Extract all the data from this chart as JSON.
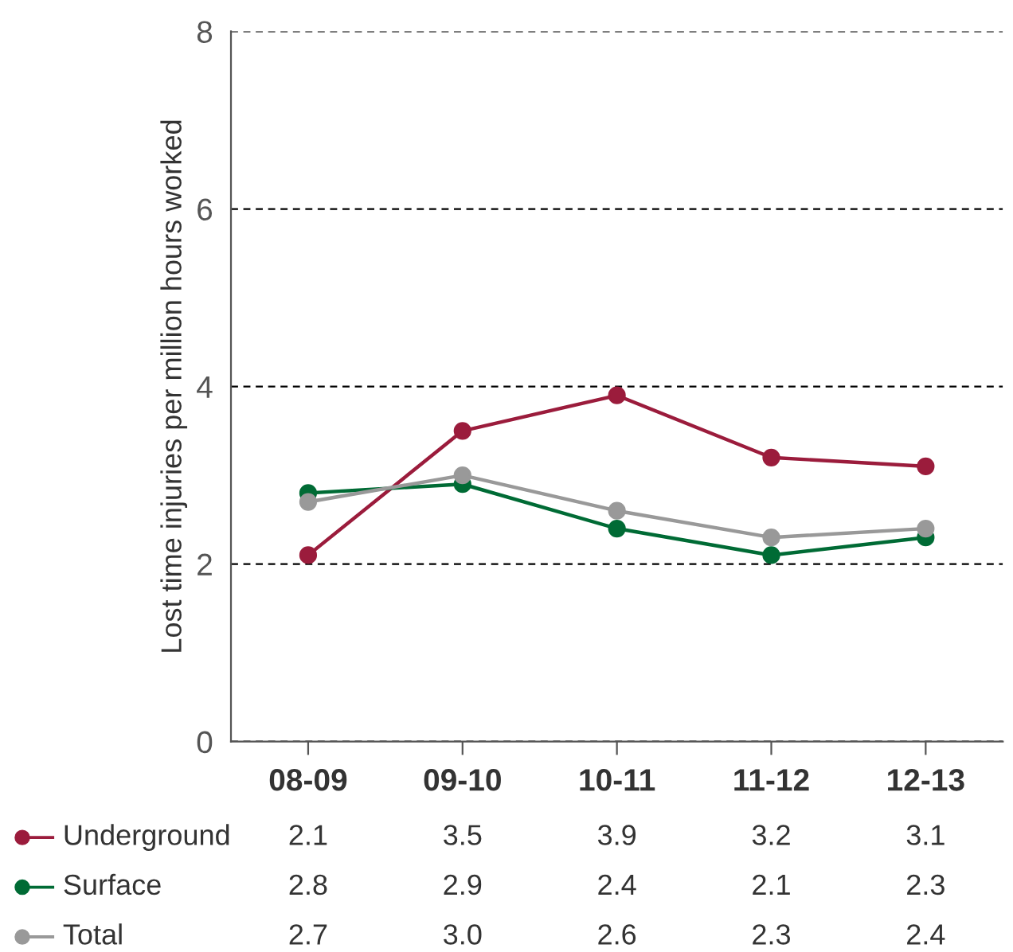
{
  "chart_data": {
    "type": "line",
    "ylabel": "Lost time injuries per million hours worked",
    "categories": [
      "08-09",
      "09-10",
      "10-11",
      "11-12",
      "12-13"
    ],
    "series": [
      {
        "name": "Underground",
        "color": "#9b1c3c",
        "values": [
          2.1,
          3.5,
          3.9,
          3.2,
          3.1
        ],
        "value_labels": [
          "2.1",
          "3.5",
          "3.9",
          "3.2",
          "3.1"
        ]
      },
      {
        "name": "Surface",
        "color": "#006b35",
        "values": [
          2.8,
          2.9,
          2.4,
          2.1,
          2.3
        ],
        "value_labels": [
          "2.8",
          "2.9",
          "2.4",
          "2.1",
          "2.3"
        ]
      },
      {
        "name": "Total",
        "color": "#999999",
        "values": [
          2.7,
          3.0,
          2.6,
          2.3,
          2.4
        ],
        "value_labels": [
          "2.7",
          "3.0",
          "2.6",
          "2.3",
          "2.4"
        ]
      }
    ],
    "ylim": [
      0,
      8
    ],
    "yticks": [
      0,
      2,
      4,
      6,
      8
    ],
    "grid": "y",
    "marker": "circle",
    "line_style": "solid",
    "legend": "bottom"
  }
}
